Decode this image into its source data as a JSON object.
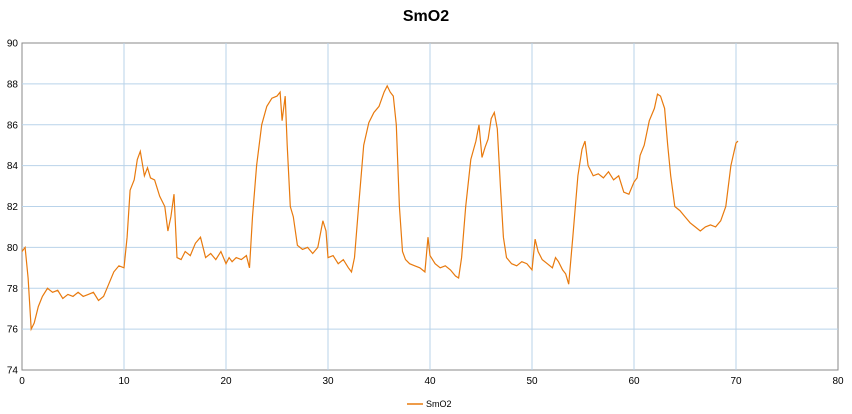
{
  "chart_data": {
    "type": "line",
    "title": "SmO2",
    "xlabel": "",
    "ylabel": "",
    "xlim": [
      0,
      80
    ],
    "ylim": [
      74,
      90
    ],
    "x_ticks": [
      0,
      10,
      20,
      30,
      40,
      50,
      60,
      70,
      80
    ],
    "y_ticks": [
      74,
      76,
      78,
      80,
      82,
      84,
      86,
      88,
      90
    ],
    "grid": true,
    "legend_position": "bottom",
    "series": [
      {
        "name": "SmO2",
        "color": "#e87a0e",
        "points": [
          [
            0.0,
            79.8
          ],
          [
            0.3,
            80.0
          ],
          [
            0.6,
            78.5
          ],
          [
            0.9,
            76.0
          ],
          [
            1.2,
            76.3
          ],
          [
            1.6,
            77.1
          ],
          [
            2.0,
            77.6
          ],
          [
            2.5,
            78.0
          ],
          [
            3.0,
            77.8
          ],
          [
            3.5,
            77.9
          ],
          [
            4.0,
            77.5
          ],
          [
            4.5,
            77.7
          ],
          [
            5.0,
            77.6
          ],
          [
            5.5,
            77.8
          ],
          [
            6.0,
            77.6
          ],
          [
            6.5,
            77.7
          ],
          [
            7.0,
            77.8
          ],
          [
            7.5,
            77.4
          ],
          [
            8.0,
            77.6
          ],
          [
            8.5,
            78.2
          ],
          [
            9.0,
            78.8
          ],
          [
            9.5,
            79.1
          ],
          [
            10.0,
            79.0
          ],
          [
            10.3,
            80.5
          ],
          [
            10.6,
            82.8
          ],
          [
            11.0,
            83.3
          ],
          [
            11.3,
            84.3
          ],
          [
            11.6,
            84.7
          ],
          [
            12.0,
            83.5
          ],
          [
            12.3,
            83.9
          ],
          [
            12.6,
            83.4
          ],
          [
            13.0,
            83.3
          ],
          [
            13.5,
            82.5
          ],
          [
            14.0,
            82.0
          ],
          [
            14.3,
            80.8
          ],
          [
            14.6,
            81.5
          ],
          [
            14.9,
            82.6
          ],
          [
            15.2,
            79.5
          ],
          [
            15.6,
            79.4
          ],
          [
            16.0,
            79.8
          ],
          [
            16.5,
            79.6
          ],
          [
            17.0,
            80.2
          ],
          [
            17.5,
            80.5
          ],
          [
            18.0,
            79.5
          ],
          [
            18.5,
            79.7
          ],
          [
            19.0,
            79.4
          ],
          [
            19.5,
            79.8
          ],
          [
            20.0,
            79.2
          ],
          [
            20.3,
            79.5
          ],
          [
            20.6,
            79.3
          ],
          [
            21.0,
            79.5
          ],
          [
            21.5,
            79.4
          ],
          [
            22.0,
            79.6
          ],
          [
            22.3,
            79.0
          ],
          [
            22.6,
            81.5
          ],
          [
            23.0,
            84.0
          ],
          [
            23.5,
            86.0
          ],
          [
            24.0,
            86.9
          ],
          [
            24.5,
            87.3
          ],
          [
            25.0,
            87.4
          ],
          [
            25.3,
            87.6
          ],
          [
            25.5,
            86.2
          ],
          [
            25.8,
            87.4
          ],
          [
            26.0,
            85.0
          ],
          [
            26.3,
            82.0
          ],
          [
            26.6,
            81.5
          ],
          [
            27.0,
            80.1
          ],
          [
            27.5,
            79.9
          ],
          [
            28.0,
            80.0
          ],
          [
            28.5,
            79.7
          ],
          [
            29.0,
            80.0
          ],
          [
            29.5,
            81.3
          ],
          [
            29.8,
            80.8
          ],
          [
            30.0,
            79.5
          ],
          [
            30.5,
            79.6
          ],
          [
            31.0,
            79.2
          ],
          [
            31.5,
            79.4
          ],
          [
            32.0,
            79.0
          ],
          [
            32.3,
            78.8
          ],
          [
            32.6,
            79.5
          ],
          [
            33.0,
            82.0
          ],
          [
            33.5,
            85.0
          ],
          [
            34.0,
            86.1
          ],
          [
            34.5,
            86.6
          ],
          [
            35.0,
            86.9
          ],
          [
            35.5,
            87.6
          ],
          [
            35.8,
            87.9
          ],
          [
            36.1,
            87.6
          ],
          [
            36.4,
            87.4
          ],
          [
            36.7,
            86.0
          ],
          [
            37.0,
            82.0
          ],
          [
            37.3,
            79.8
          ],
          [
            37.6,
            79.4
          ],
          [
            38.0,
            79.2
          ],
          [
            38.5,
            79.1
          ],
          [
            39.0,
            79.0
          ],
          [
            39.5,
            78.8
          ],
          [
            39.8,
            80.5
          ],
          [
            40.0,
            79.6
          ],
          [
            40.5,
            79.2
          ],
          [
            41.0,
            79.0
          ],
          [
            41.5,
            79.1
          ],
          [
            42.0,
            78.9
          ],
          [
            42.5,
            78.6
          ],
          [
            42.8,
            78.5
          ],
          [
            43.1,
            79.5
          ],
          [
            43.5,
            82.0
          ],
          [
            44.0,
            84.3
          ],
          [
            44.5,
            85.2
          ],
          [
            44.8,
            86.0
          ],
          [
            45.1,
            84.4
          ],
          [
            45.4,
            84.9
          ],
          [
            45.7,
            85.3
          ],
          [
            46.0,
            86.3
          ],
          [
            46.3,
            86.6
          ],
          [
            46.6,
            85.8
          ],
          [
            46.9,
            83.0
          ],
          [
            47.2,
            80.5
          ],
          [
            47.5,
            79.5
          ],
          [
            48.0,
            79.2
          ],
          [
            48.5,
            79.1
          ],
          [
            49.0,
            79.3
          ],
          [
            49.5,
            79.2
          ],
          [
            50.0,
            78.9
          ],
          [
            50.3,
            80.4
          ],
          [
            50.6,
            79.8
          ],
          [
            51.0,
            79.4
          ],
          [
            51.5,
            79.2
          ],
          [
            52.0,
            79.0
          ],
          [
            52.3,
            79.5
          ],
          [
            52.6,
            79.3
          ],
          [
            53.0,
            78.9
          ],
          [
            53.3,
            78.7
          ],
          [
            53.6,
            78.2
          ],
          [
            54.0,
            80.5
          ],
          [
            54.5,
            83.5
          ],
          [
            54.9,
            84.8
          ],
          [
            55.2,
            85.2
          ],
          [
            55.5,
            84.0
          ],
          [
            56.0,
            83.5
          ],
          [
            56.5,
            83.6
          ],
          [
            57.0,
            83.4
          ],
          [
            57.5,
            83.7
          ],
          [
            58.0,
            83.3
          ],
          [
            58.5,
            83.5
          ],
          [
            59.0,
            82.7
          ],
          [
            59.5,
            82.6
          ],
          [
            60.0,
            83.2
          ],
          [
            60.3,
            83.4
          ],
          [
            60.6,
            84.5
          ],
          [
            61.0,
            85.0
          ],
          [
            61.5,
            86.2
          ],
          [
            62.0,
            86.8
          ],
          [
            62.3,
            87.5
          ],
          [
            62.6,
            87.4
          ],
          [
            63.0,
            86.8
          ],
          [
            63.3,
            85.0
          ],
          [
            63.6,
            83.5
          ],
          [
            64.0,
            82.0
          ],
          [
            64.5,
            81.8
          ],
          [
            65.0,
            81.5
          ],
          [
            65.5,
            81.2
          ],
          [
            66.0,
            81.0
          ],
          [
            66.5,
            80.8
          ],
          [
            67.0,
            81.0
          ],
          [
            67.5,
            81.1
          ],
          [
            68.0,
            81.0
          ],
          [
            68.5,
            81.3
          ],
          [
            69.0,
            82.0
          ],
          [
            69.5,
            84.0
          ],
          [
            70.0,
            85.1
          ],
          [
            70.2,
            85.2
          ]
        ]
      }
    ]
  }
}
